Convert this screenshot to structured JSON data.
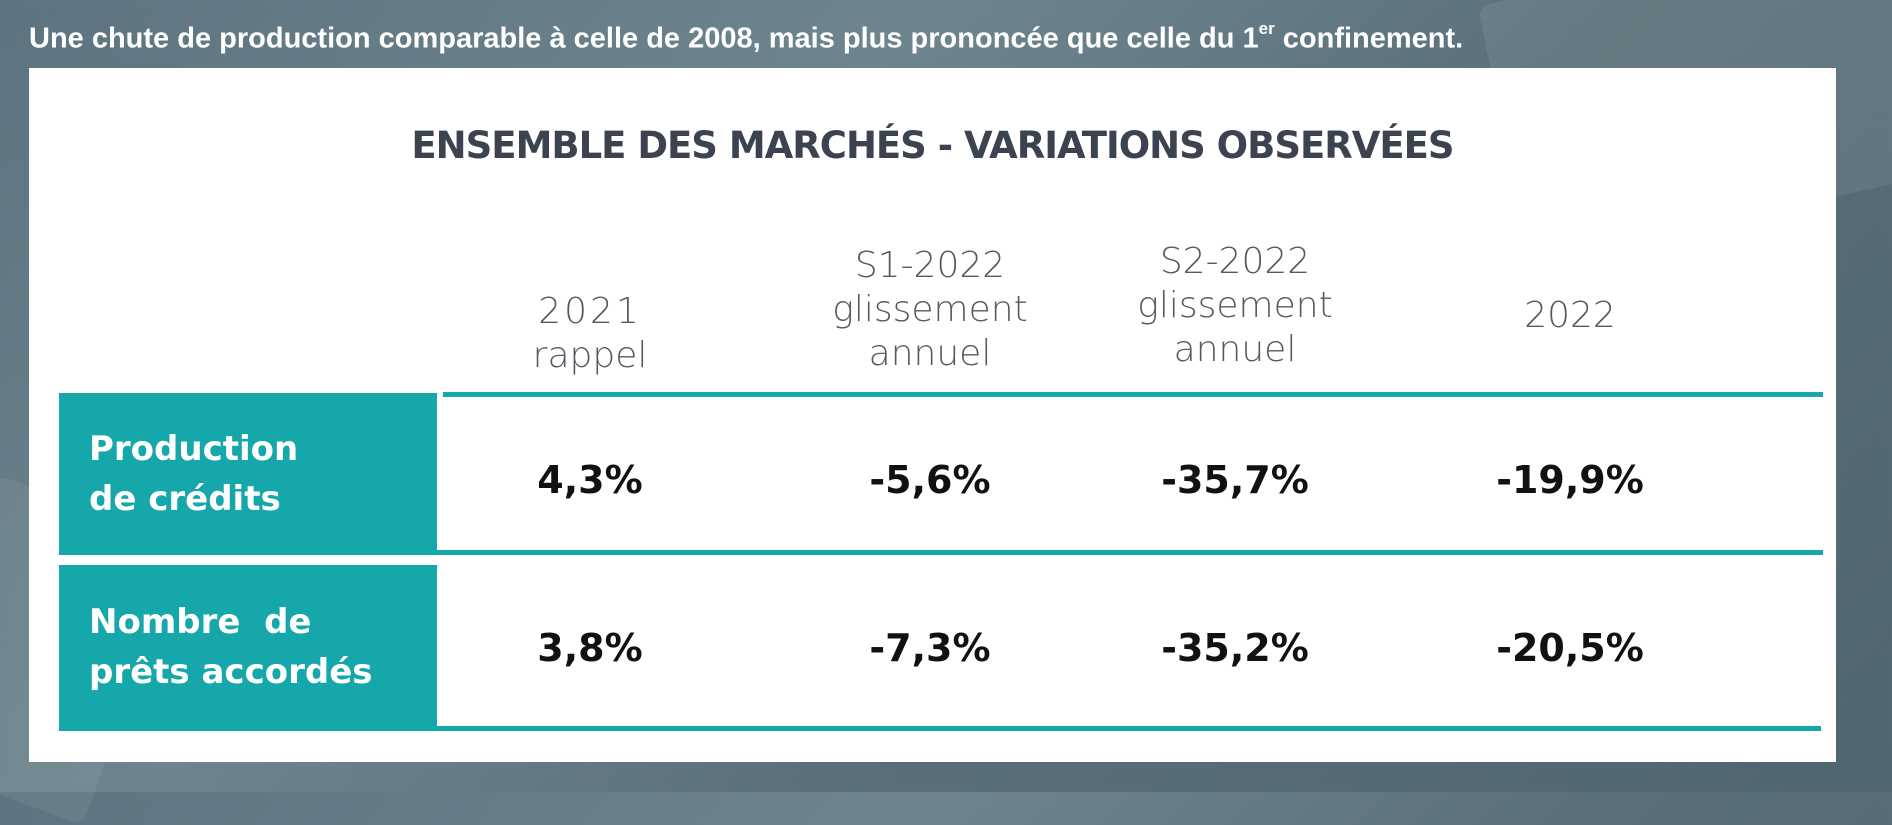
{
  "heading": {
    "text": "Une chute de production comparable à celle de 2008, mais plus prononcée que celle du 1",
    "sup": "er",
    "tail": " confinement."
  },
  "colors": {
    "accent": "#15a7a9",
    "title": "#3b4350"
  },
  "chart_data": {
    "type": "table",
    "title": "ENSEMBLE DES MARCHÉS - VARIATIONS OBSERVÉES",
    "columns": [
      {
        "line1": "2021",
        "line2": "rappel",
        "line3": ""
      },
      {
        "line1": "S1-2022",
        "line2": "glissement",
        "line3": "annuel"
      },
      {
        "line1": "S2-2022",
        "line2": "glissement",
        "line3": "annuel"
      },
      {
        "line1": "2022",
        "line2": "",
        "line3": ""
      }
    ],
    "rows": [
      {
        "label_line1": "Production",
        "label_line2": "de crédits",
        "values": [
          "4,3%",
          "-5,6%",
          "-35,7%",
          "-19,9%"
        ]
      },
      {
        "label_line1": "Nombre  de",
        "label_line2": "prêts accordés",
        "values": [
          "3,8%",
          "-7,3%",
          "-35,2%",
          "-20,5%"
        ]
      }
    ]
  }
}
